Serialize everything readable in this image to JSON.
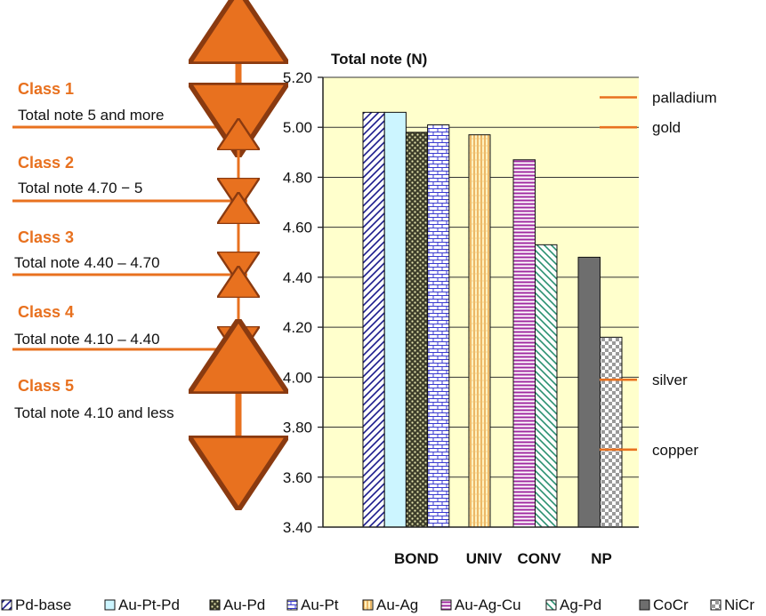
{
  "chart_data": {
    "type": "bar",
    "title": "Total note (N)",
    "ylim": [
      3.4,
      5.2
    ],
    "yticks": [
      "5.20",
      "5.00",
      "4.80",
      "4.60",
      "4.40",
      "4.20",
      "4.00",
      "3.80",
      "3.60",
      "3.40"
    ],
    "categories": [
      "BOND",
      "UNIV",
      "CONV",
      "NP"
    ],
    "grid": true,
    "series": [
      {
        "name": "Pd-base",
        "category": "BOND",
        "value": 5.06,
        "fill": "#ffffff",
        "pattern": "diag",
        "color": "#1a1a8c"
      },
      {
        "name": "Au-Pt-Pd",
        "category": "BOND",
        "value": 5.06,
        "fill": "#ccf5ff",
        "pattern": "none",
        "color": "#1a1a8c"
      },
      {
        "name": "Au-Pd",
        "category": "BOND",
        "value": 4.98,
        "fill": "#4a4a33",
        "pattern": "dots",
        "color": "#d9d9a0"
      },
      {
        "name": "Au-Pt",
        "category": "BOND",
        "value": 5.01,
        "fill": "#ffffff",
        "pattern": "brick",
        "color": "#3a3ad0"
      },
      {
        "name": "Au-Ag",
        "category": "UNIV",
        "value": 4.97,
        "fill": "#fff2c0",
        "pattern": "vlines",
        "color": "#e0902a"
      },
      {
        "name": "Au-Ag-Cu",
        "category": "CONV",
        "value": 4.87,
        "fill": "#ffffff",
        "pattern": "hlines",
        "color": "#a02aa0"
      },
      {
        "name": "Ag-Pd",
        "category": "CONV",
        "value": 4.53,
        "fill": "#ffffff",
        "pattern": "diagrev",
        "color": "#2a9070"
      },
      {
        "name": "CoCr",
        "category": "NP",
        "value": 4.48,
        "fill": "#6e6e6e",
        "pattern": "none",
        "color": "#6e6e6e"
      },
      {
        "name": "NiCr",
        "category": "NP",
        "value": 4.16,
        "fill": "#ffffff",
        "pattern": "checker",
        "color": "#8a8a8a"
      }
    ],
    "reference_lines": [
      {
        "label": "palladium",
        "value": 5.12
      },
      {
        "label": "gold",
        "value": 5.0
      },
      {
        "label": "silver",
        "value": 3.99
      },
      {
        "label": "copper",
        "value": 3.71
      }
    ],
    "classes": [
      {
        "title": "Class 1",
        "desc": "Total note 5 and more"
      },
      {
        "title": "Class 2",
        "desc": "Total note 4.70 − 5"
      },
      {
        "title": "Class 3",
        "desc": "Total note 4.40  – 4.70"
      },
      {
        "title": "Class 4",
        "desc": "Total note 4.10  – 4.40"
      },
      {
        "title": "Class 5",
        "desc": "Total note 4.10 and less"
      }
    ],
    "class_boundaries": [
      5.0,
      4.7,
      4.4,
      4.1
    ],
    "colors": {
      "plot_bg": "#ffffcc",
      "accent": "#e8711f",
      "grid": "#333333"
    },
    "legend_position": "bottom"
  }
}
